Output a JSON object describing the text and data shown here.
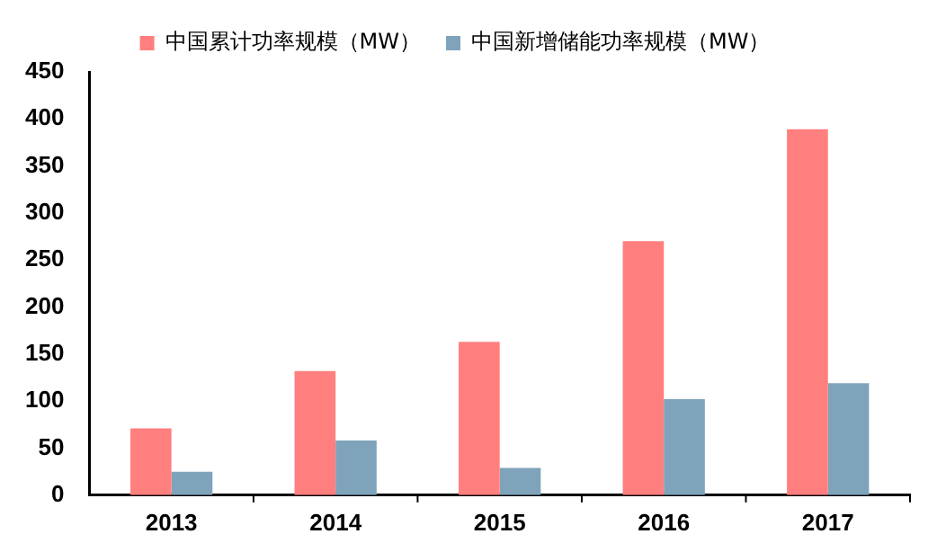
{
  "chart_data": {
    "type": "bar",
    "categories": [
      "2013",
      "2014",
      "2015",
      "2016",
      "2017"
    ],
    "series": [
      {
        "name": "中国累计功率规模（MW）",
        "color": "#ff7f7f",
        "values": [
          71,
          132,
          163,
          270,
          389
        ]
      },
      {
        "name": "中国新增储能功率规模（MW）",
        "color": "#7fa3bb",
        "values": [
          25,
          58,
          29,
          102,
          119
        ]
      }
    ],
    "ylim": [
      0,
      450
    ],
    "yticks": [
      0,
      50,
      100,
      150,
      200,
      250,
      300,
      350,
      400,
      450
    ],
    "grid": false,
    "legend": "top"
  }
}
